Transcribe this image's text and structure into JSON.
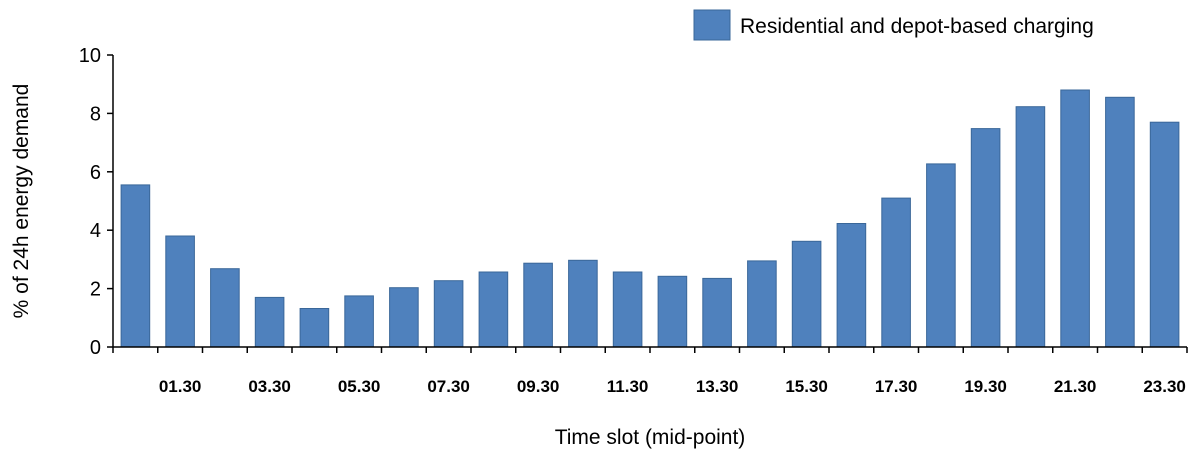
{
  "chart_data": {
    "type": "bar",
    "title": "",
    "xlabel": "Time slot (mid-point)",
    "ylabel": "% of 24h energy demand",
    "ylim": [
      0,
      10
    ],
    "yticks": [
      0,
      2,
      4,
      6,
      8,
      10
    ],
    "grid": false,
    "legend_position": "top-right",
    "categories": [
      "00.30",
      "01.30",
      "02.30",
      "03.30",
      "04.30",
      "05.30",
      "06.30",
      "07.30",
      "08.30",
      "09.30",
      "10.30",
      "11.30",
      "12.30",
      "13.30",
      "14.30",
      "15.30",
      "16.30",
      "17.30",
      "18.30",
      "19.30",
      "20.30",
      "21.30",
      "22.30",
      "23.30"
    ],
    "shown_tick_labels": [
      "01.30",
      "03.30",
      "05.30",
      "07.30",
      "09.30",
      "11.30",
      "13.30",
      "15.30",
      "17.30",
      "19.30",
      "21.30",
      "23.30"
    ],
    "series": [
      {
        "name": "Residential and depot-based charging",
        "color": "#4F81BD",
        "values": [
          5.55,
          3.8,
          2.68,
          1.7,
          1.32,
          1.75,
          2.03,
          2.27,
          2.57,
          2.87,
          2.97,
          2.57,
          2.42,
          2.35,
          2.95,
          3.62,
          4.23,
          5.1,
          6.27,
          7.48,
          8.23,
          8.8,
          8.55,
          7.7
        ]
      }
    ]
  }
}
